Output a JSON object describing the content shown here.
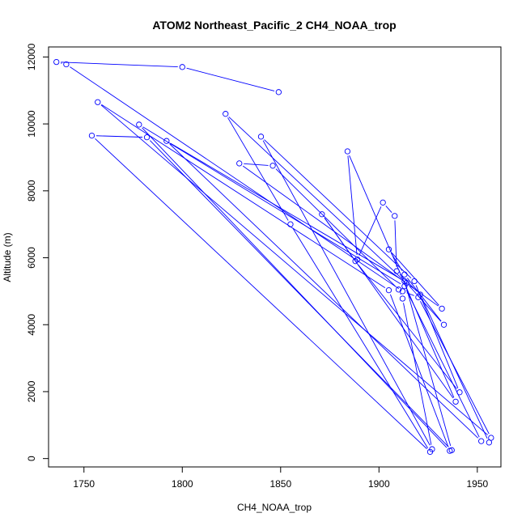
{
  "chart_data": {
    "type": "line",
    "title": "ATOM2 Northeast_Pacific_2 CH4_NOAA_trop",
    "xlabel": "CH4_NOAA_trop",
    "ylabel": "Altitude (m)",
    "xlim": [
      1732,
      1962
    ],
    "ylim": [
      -250,
      12300
    ],
    "xticks": [
      1750,
      1800,
      1850,
      1900,
      1950
    ],
    "yticks": [
      0,
      2000,
      4000,
      6000,
      8000,
      10000,
      12000
    ],
    "grid": false,
    "legend": "none",
    "line_color": "#0000ff",
    "marker": "open-circle",
    "series": [
      {
        "points": [
          [
            1849,
            10950
          ],
          [
            1800,
            11700
          ],
          [
            1736,
            11850
          ],
          [
            1741,
            11780
          ],
          [
            1912,
            5000
          ],
          [
            1920,
            4820
          ],
          [
            1957,
            620
          ],
          [
            1757,
            10650
          ],
          [
            1905,
            5030
          ],
          [
            1936,
            230
          ],
          [
            1778,
            9980
          ],
          [
            1913,
            5150
          ],
          [
            1952,
            520
          ],
          [
            1792,
            9490
          ],
          [
            1913,
            5300
          ],
          [
            1937,
            250
          ],
          [
            1782,
            9600
          ],
          [
            1754,
            9650
          ],
          [
            1926,
            200
          ],
          [
            1855,
            7000
          ],
          [
            1822,
            10300
          ],
          [
            1914,
            5250
          ],
          [
            1933,
            4000
          ],
          [
            1913,
            5500
          ],
          [
            1905,
            6250
          ],
          [
            1932,
            4480
          ],
          [
            1829,
            8820
          ],
          [
            1846,
            8750
          ],
          [
            1910,
            5050
          ],
          [
            1912,
            4780
          ],
          [
            1927,
            280
          ],
          [
            1840,
            9620
          ],
          [
            1918,
            5300
          ],
          [
            1941,
            1980
          ],
          [
            1888,
            5900
          ],
          [
            1871,
            7300
          ],
          [
            1939,
            1700
          ],
          [
            1884,
            9180
          ],
          [
            1889,
            5950
          ],
          [
            1902,
            7650
          ],
          [
            1908,
            7250
          ],
          [
            1909,
            5600
          ],
          [
            1921,
            4900
          ],
          [
            1956,
            480
          ]
        ]
      }
    ]
  }
}
